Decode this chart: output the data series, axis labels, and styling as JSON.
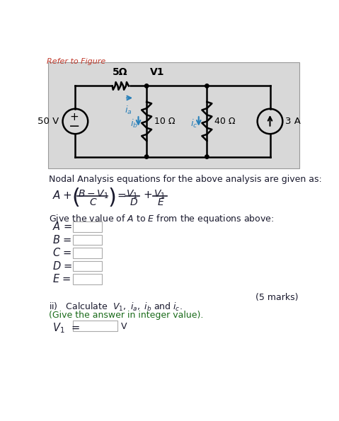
{
  "refer_text": "Refer to Figure",
  "circuit_bg": "#d8d8d8",
  "voltage_source": "50 V",
  "resistor1_label": "5Ω",
  "node_label": "V1",
  "resistor2_label": "10 Ω",
  "resistor3_label": "40 Ω",
  "current_source": "3 A",
  "nodal_eq_text": "Nodal Analysis equations for the above analysis are given as:",
  "give_value_text": "Give the value of A to E from the equations above:",
  "box_labels": [
    "A",
    "B",
    "C",
    "D",
    "E"
  ],
  "marks_text": "(5 marks)",
  "calc_label": "ii)   Calculate",
  "give_answer_text": "(Give the answer in integer value).",
  "v1_unit": "V",
  "box_edgecolor": "#aaaaaa",
  "title_color": "#c0392b",
  "body_text_color": "#1a1a2e",
  "circuit_line_color": "#000000",
  "component_color": "#000000",
  "arrow_color": "#2980b9",
  "node_dot_color": "#000000",
  "circuit_bg_edge": "#999999"
}
